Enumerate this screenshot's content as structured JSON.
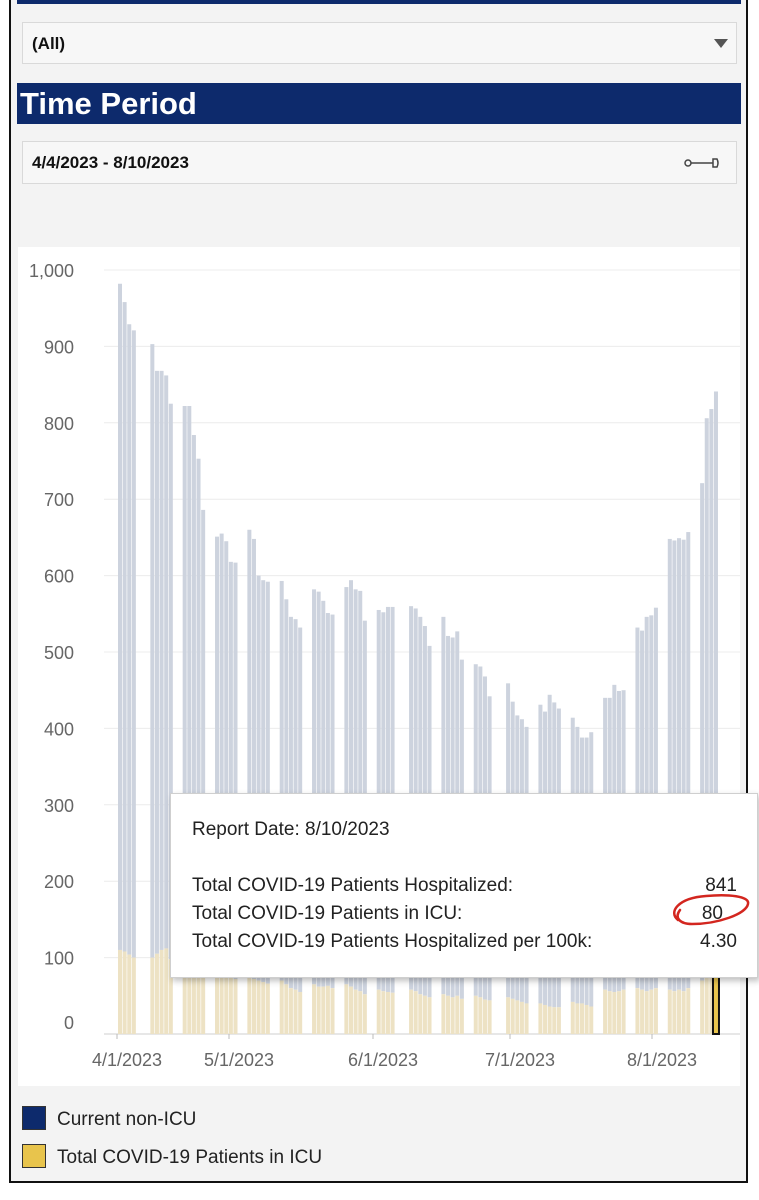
{
  "filter": {
    "selected": "(All)"
  },
  "time_period": {
    "header": "Time Period",
    "range": "4/4/2023 - 8/10/2023"
  },
  "colors": {
    "icu": "#ede2c4",
    "non_icu": "#cdd3de",
    "selected_icu": "#e8c44c",
    "header": "#0d2a6c",
    "legend_non_icu": "#0d2a6c",
    "legend_icu": "#e8c44c"
  },
  "tooltip": {
    "date_label": "Report Date: 8/10/2023",
    "rows": [
      {
        "label": "Total COVID-19 Patients Hospitalized:",
        "value": "841"
      },
      {
        "label": "Total COVID-19 Patients in ICU:",
        "value": "80"
      },
      {
        "label": "Total COVID-19 Patients Hospitalized per 100k:",
        "value": "4.30"
      }
    ]
  },
  "legend": [
    {
      "label": "Current non-ICU",
      "color": "#0d2a6c"
    },
    {
      "label": "Total COVID-19 Patients in ICU",
      "color": "#e8c44c"
    }
  ],
  "chart_data": {
    "type": "bar",
    "stacked": true,
    "title": "",
    "xlabel": "",
    "ylabel": "",
    "ylim": [
      0,
      1000
    ],
    "yticks": [
      0,
      100,
      200,
      300,
      400,
      500,
      600,
      700,
      800,
      900,
      1000
    ],
    "yticklabels": [
      "0",
      "100",
      "200",
      "300",
      "400",
      "500",
      "600",
      "700",
      "800",
      "900",
      "1,000"
    ],
    "xticks": [
      "4/1/2023",
      "5/1/2023",
      "6/1/2023",
      "7/1/2023",
      "8/1/2023"
    ],
    "grid": true,
    "groups": [
      {
        "start": 0,
        "totals": [
          982,
          958,
          929,
          921
        ],
        "icu": [
          110,
          108,
          104,
          100
        ]
      },
      {
        "start": 7,
        "totals": [
          903,
          868,
          868,
          862,
          825
        ],
        "icu": [
          100,
          105,
          110,
          112,
          98
        ]
      },
      {
        "start": 14,
        "totals": [
          822,
          822,
          784,
          753,
          686
        ],
        "icu": [
          95,
          92,
          90,
          90,
          85
        ]
      },
      {
        "start": 21,
        "totals": [
          651,
          655,
          645,
          618,
          617
        ],
        "icu": [
          83,
          80,
          78,
          76,
          72
        ]
      },
      {
        "start": 28,
        "totals": [
          660,
          648,
          600,
          594,
          592
        ],
        "icu": [
          75,
          72,
          70,
          68,
          66
        ]
      },
      {
        "start": 35,
        "totals": [
          593,
          569,
          546,
          543,
          532
        ],
        "icu": [
          70,
          65,
          60,
          58,
          55
        ]
      },
      {
        "start": 42,
        "totals": [
          582,
          579,
          567,
          551,
          549
        ],
        "icu": [
          65,
          62,
          62,
          63,
          60
        ]
      },
      {
        "start": 49,
        "totals": [
          585,
          594,
          582,
          580,
          541
        ],
        "icu": [
          65,
          62,
          58,
          56,
          52
        ]
      },
      {
        "start": 56,
        "totals": [
          555,
          552,
          559,
          559
        ],
        "icu": [
          58,
          56,
          55,
          54
        ]
      },
      {
        "start": 63,
        "totals": [
          560,
          557,
          546,
          534,
          508
        ],
        "icu": [
          58,
          56,
          52,
          50,
          48
        ]
      },
      {
        "start": 70,
        "totals": [
          546,
          521,
          519,
          527,
          490
        ],
        "icu": [
          52,
          50,
          48,
          50,
          46
        ]
      },
      {
        "start": 77,
        "totals": [
          484,
          481,
          468,
          442
        ],
        "icu": [
          50,
          48,
          45,
          44
        ]
      },
      {
        "start": 84,
        "totals": [
          459,
          435,
          417,
          412,
          402
        ],
        "icu": [
          48,
          46,
          44,
          42,
          40
        ]
      },
      {
        "start": 91,
        "totals": [
          431,
          422,
          444,
          434,
          426
        ],
        "icu": [
          40,
          38,
          36,
          35,
          35
        ]
      },
      {
        "start": 98,
        "totals": [
          414,
          402,
          388,
          388,
          395
        ],
        "icu": [
          42,
          40,
          40,
          38,
          36
        ]
      },
      {
        "start": 105,
        "totals": [
          440,
          440,
          457,
          449,
          450
        ],
        "icu": [
          58,
          56,
          55,
          56,
          58
        ]
      },
      {
        "start": 112,
        "totals": [
          532,
          528,
          546,
          548,
          558
        ],
        "icu": [
          60,
          58,
          56,
          58,
          60
        ]
      },
      {
        "start": 119,
        "totals": [
          648,
          646,
          649,
          647,
          657
        ],
        "icu": [
          58,
          56,
          58,
          56,
          60
        ]
      },
      {
        "start": 126,
        "totals": [
          721,
          806,
          818,
          841
        ],
        "icu": [
          70,
          75,
          78,
          80
        ]
      }
    ],
    "selected": {
      "date": "8/10/2023",
      "total": 841,
      "icu": 80
    }
  }
}
